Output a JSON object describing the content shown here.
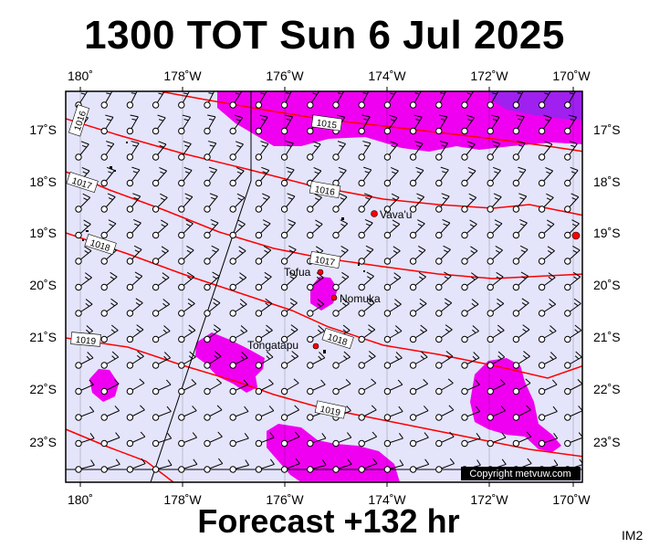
{
  "header": {
    "title": "1300 TOT Sun 6 Jul 2025"
  },
  "footer": {
    "forecast": "Forecast +132 hr",
    "code": "IM2"
  },
  "map": {
    "lon_labels": [
      "180˚",
      "178˚W",
      "176˚W",
      "174˚W",
      "172˚W",
      "170˚W"
    ],
    "lat_labels": [
      "17˚S",
      "18˚S",
      "19˚S",
      "20˚S",
      "21˚S",
      "22˚S",
      "23˚S"
    ],
    "places": [
      "Vava'u",
      "Tofua",
      "Nomuka",
      "Tongatapu"
    ],
    "isobar_labels": [
      "1015",
      "1016",
      "1016",
      "1017",
      "1017",
      "1018",
      "1018",
      "1019",
      "1019"
    ],
    "copyright": "Copyright metvuw.com",
    "colors": {
      "ocean": "#e4e4fb",
      "rain": "#f000f0",
      "heavy_rain": "#a020f0",
      "isobar": "#ff0000"
    }
  }
}
